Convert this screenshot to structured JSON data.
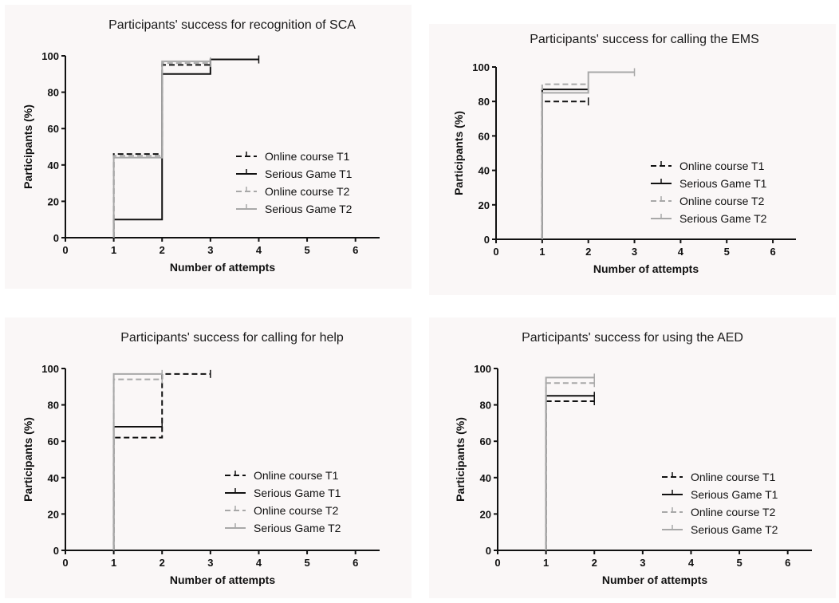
{
  "chart_data": [
    {
      "type": "line",
      "step": true,
      "title": "Participants' success for recognition of SCA",
      "xlabel": "Number of attempts",
      "ylabel": "Participants (%)",
      "xlim": [
        0,
        6.5
      ],
      "ylim": [
        0,
        100
      ],
      "xticks": [
        "0",
        "1",
        "2",
        "3",
        "4",
        "5",
        "6"
      ],
      "yticks": [
        "0",
        "20",
        "40",
        "60",
        "80",
        "100"
      ],
      "grid": false,
      "legend": "right",
      "series": [
        {
          "name": "Online course T1",
          "style": "dashed",
          "color": "#111111",
          "x": [
            1,
            2,
            3
          ],
          "y": [
            46,
            95,
            95
          ]
        },
        {
          "name": "Serious Game T1",
          "style": "solid",
          "color": "#111111",
          "x": [
            1,
            2,
            3,
            4
          ],
          "y": [
            10,
            90,
            98,
            98
          ]
        },
        {
          "name": "Online course T2",
          "style": "dashed",
          "color": "#a8a8a8",
          "x": [
            1,
            2,
            3
          ],
          "y": [
            45,
            96,
            96
          ]
        },
        {
          "name": "Serious Game T2",
          "style": "solid",
          "color": "#a8a8a8",
          "x": [
            1,
            2,
            3
          ],
          "y": [
            44,
            97,
            97
          ]
        }
      ]
    },
    {
      "type": "line",
      "step": true,
      "title": "Participants' success for calling the EMS",
      "xlabel": "Number of attempts",
      "ylabel": "Participants (%)",
      "xlim": [
        0,
        6.5
      ],
      "ylim": [
        0,
        100
      ],
      "xticks": [
        "0",
        "1",
        "2",
        "3",
        "4",
        "5",
        "6"
      ],
      "yticks": [
        "0",
        "20",
        "40",
        "60",
        "80",
        "100"
      ],
      "grid": false,
      "legend": "right",
      "series": [
        {
          "name": "Online course T1",
          "style": "dashed",
          "color": "#111111",
          "x": [
            1,
            2
          ],
          "y": [
            80,
            80
          ]
        },
        {
          "name": "Serious Game T1",
          "style": "solid",
          "color": "#111111",
          "x": [
            1,
            2
          ],
          "y": [
            87,
            87
          ]
        },
        {
          "name": "Online course T2",
          "style": "dashed",
          "color": "#a8a8a8",
          "x": [
            1,
            2
          ],
          "y": [
            90,
            90
          ]
        },
        {
          "name": "Serious Game T2",
          "style": "solid",
          "color": "#a8a8a8",
          "x": [
            1,
            2,
            3
          ],
          "y": [
            85,
            97,
            97
          ]
        }
      ]
    },
    {
      "type": "line",
      "step": true,
      "title": "Participants' success for calling for help",
      "xlabel": "Number of attempts",
      "ylabel": "Participants (%)",
      "xlim": [
        0,
        6.5
      ],
      "ylim": [
        0,
        100
      ],
      "xticks": [
        "0",
        "1",
        "2",
        "3",
        "4",
        "5",
        "6"
      ],
      "yticks": [
        "0",
        "20",
        "40",
        "60",
        "80",
        "100"
      ],
      "grid": false,
      "legend": "right",
      "series": [
        {
          "name": "Online course T1",
          "style": "dashed",
          "color": "#111111",
          "x": [
            1,
            2,
            3
          ],
          "y": [
            62,
            97,
            97
          ]
        },
        {
          "name": "Serious Game T1",
          "style": "solid",
          "color": "#111111",
          "x": [
            1,
            2
          ],
          "y": [
            68,
            68
          ]
        },
        {
          "name": "Online course T2",
          "style": "dashed",
          "color": "#a8a8a8",
          "x": [
            1,
            2
          ],
          "y": [
            94,
            94
          ]
        },
        {
          "name": "Serious Game T2",
          "style": "solid",
          "color": "#a8a8a8",
          "x": [
            1,
            2
          ],
          "y": [
            97,
            97
          ]
        }
      ]
    },
    {
      "type": "line",
      "step": true,
      "title": "Participants' success for using the AED",
      "xlabel": "Number of attempts",
      "ylabel": "Participants (%)",
      "xlim": [
        0,
        6.5
      ],
      "ylim": [
        0,
        100
      ],
      "xticks": [
        "0",
        "1",
        "2",
        "3",
        "4",
        "5",
        "6"
      ],
      "yticks": [
        "0",
        "20",
        "40",
        "60",
        "80",
        "100"
      ],
      "grid": false,
      "legend": "right",
      "series": [
        {
          "name": "Online course T1",
          "style": "dashed",
          "color": "#111111",
          "x": [
            1,
            2
          ],
          "y": [
            82,
            82
          ]
        },
        {
          "name": "Serious Game T1",
          "style": "solid",
          "color": "#111111",
          "x": [
            1,
            2
          ],
          "y": [
            85,
            85
          ]
        },
        {
          "name": "Online course T2",
          "style": "dashed",
          "color": "#a8a8a8",
          "x": [
            1,
            2
          ],
          "y": [
            92,
            92
          ]
        },
        {
          "name": "Serious Game T2",
          "style": "solid",
          "color": "#a8a8a8",
          "x": [
            1,
            2
          ],
          "y": [
            95,
            95
          ]
        }
      ]
    }
  ]
}
